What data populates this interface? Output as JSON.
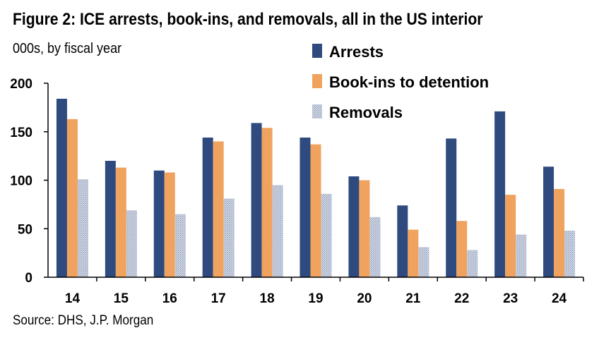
{
  "header": {
    "title": "Figure 2: ICE arrests, book-ins, and removals, all in the US interior",
    "subtitle": "000s, by fiscal year"
  },
  "footer": {
    "source": "Source: DHS, J.P. Morgan"
  },
  "colors": {
    "arrests": "#2e4a7f",
    "bookins": "#f0a35e",
    "removals": "#b8c2d6"
  },
  "chart_data": {
    "type": "bar",
    "title": "Figure 2: ICE arrests, book-ins, and removals, all in the US interior",
    "ylabel": "000s, by fiscal year",
    "xlabel": "",
    "ylim": [
      0,
      200
    ],
    "yticks": [
      0,
      50,
      100,
      150,
      200
    ],
    "grid": false,
    "legend_position": "top-right",
    "categories": [
      "14",
      "15",
      "16",
      "17",
      "18",
      "19",
      "20",
      "21",
      "22",
      "23",
      "24"
    ],
    "series": [
      {
        "name": "Arrests",
        "color_key": "arrests",
        "values": [
          184,
          120,
          110,
          144,
          159,
          144,
          104,
          74,
          143,
          171,
          114
        ]
      },
      {
        "name": "Book-ins to detention",
        "color_key": "bookins",
        "values": [
          163,
          113,
          108,
          140,
          154,
          137,
          100,
          49,
          58,
          85,
          91
        ]
      },
      {
        "name": "Removals",
        "color_key": "removals",
        "values": [
          101,
          69,
          65,
          81,
          95,
          86,
          62,
          31,
          28,
          44,
          48
        ]
      }
    ]
  }
}
